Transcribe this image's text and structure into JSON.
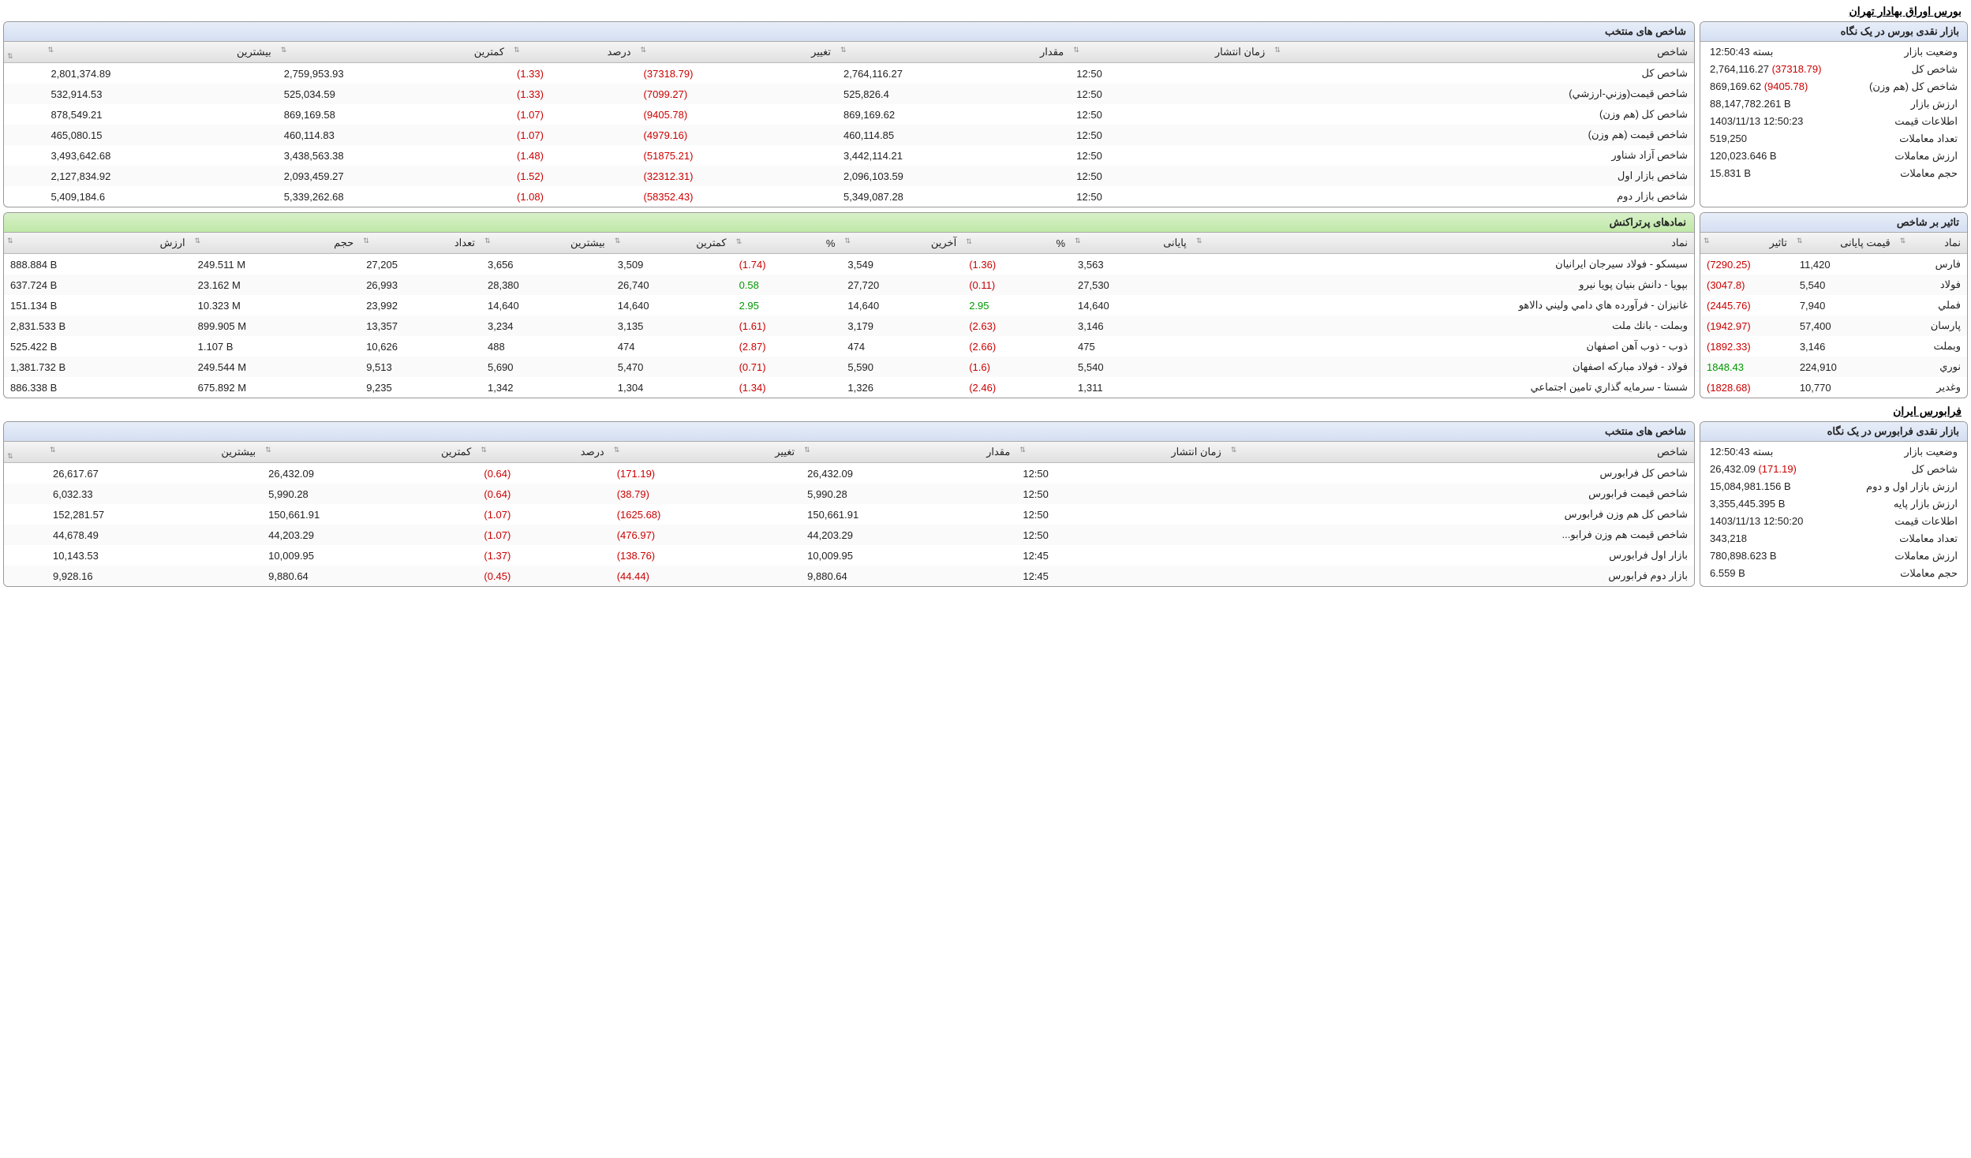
{
  "tse": {
    "title": "بورس اوراق بهادار تهران",
    "glance": {
      "header": "بازار نقدی بورس در یک نگاه",
      "rows": [
        {
          "label": "وضعیت بازار",
          "value": "بسته 12:50:43"
        },
        {
          "label": "شاخص کل",
          "value": "2,764,116.27",
          "delta": "(37318.79)",
          "neg": true
        },
        {
          "label": "شاخص كل (هم وزن)",
          "value": "869,169.62",
          "delta": "(9405.78)",
          "neg": true
        },
        {
          "label": "ارزش بازار",
          "value": "88,147,782.261 B"
        },
        {
          "label": "اطلاعات قیمت",
          "value": "1403/11/13 12:50:23"
        },
        {
          "label": "تعداد معاملات",
          "value": "519,250"
        },
        {
          "label": "ارزش معاملات",
          "value": "120,023.646 B"
        },
        {
          "label": "حجم معاملات",
          "value": "15.831 B"
        }
      ]
    },
    "indices": {
      "header": "شاخص های منتخب",
      "cols": [
        "شاخص",
        "زمان انتشار",
        "مقدار",
        "تغییر",
        "درصد",
        "کمترین",
        "بیشترین",
        ""
      ],
      "rows": [
        [
          "شاخص كل",
          "12:50",
          "2,764,116.27",
          "(37318.79)",
          "(1.33)",
          "2,759,953.93",
          "2,801,374.89"
        ],
        [
          "شاخص قيمت(وزني-ارزشي)",
          "12:50",
          "525,826.4",
          "(7099.27)",
          "(1.33)",
          "525,034.59",
          "532,914.53"
        ],
        [
          "شاخص كل (هم وزن)",
          "12:50",
          "869,169.62",
          "(9405.78)",
          "(1.07)",
          "869,169.58",
          "878,549.21"
        ],
        [
          "شاخص قيمت (هم وزن)",
          "12:50",
          "460,114.85",
          "(4979.16)",
          "(1.07)",
          "460,114.83",
          "465,080.15"
        ],
        [
          "شاخص آزاد شناور",
          "12:50",
          "3,442,114.21",
          "(51875.21)",
          "(1.48)",
          "3,438,563.38",
          "3,493,642.68"
        ],
        [
          "شاخص بازار اول",
          "12:50",
          "2,096,103.59",
          "(32312.31)",
          "(1.52)",
          "2,093,459.27",
          "2,127,834.92"
        ],
        [
          "شاخص بازار دوم",
          "12:50",
          "5,349,087.28",
          "(58352.43)",
          "(1.08)",
          "5,339,262.68",
          "5,409,184.6"
        ]
      ]
    },
    "impact": {
      "header": "تاثیر بر شاخص",
      "cols": [
        "نماد",
        "قیمت پایانی",
        "تاثیر"
      ],
      "rows": [
        [
          "فارس",
          "11,420",
          "(7290.25)",
          "neg"
        ],
        [
          "فولاد",
          "5,540",
          "(3047.8)",
          "neg"
        ],
        [
          "فملي",
          "7,940",
          "(2445.76)",
          "neg"
        ],
        [
          "پارسان",
          "57,400",
          "(1942.97)",
          "neg"
        ],
        [
          "وبملت",
          "3,146",
          "(1892.33)",
          "neg"
        ],
        [
          "نوري",
          "224,910",
          "1848.43",
          "pos"
        ],
        [
          "وغدير",
          "10,770",
          "(1828.68)",
          "neg"
        ]
      ]
    },
    "top": {
      "header": "نمادهای پرتراکنش",
      "cols": [
        "نماد",
        "پایانی",
        "%",
        "آخرین",
        "%",
        "کمترین",
        "بیشترین",
        "تعداد",
        "حجم",
        "ارزش"
      ],
      "rows": [
        [
          "سيسكو - فولاد سيرجان ايرانيان",
          "3,563",
          "(1.36)",
          "3,549",
          "(1.74)",
          "3,509",
          "3,656",
          "27,205",
          "249.511 M",
          "888.884 B"
        ],
        [
          "بپويا - دانش بنيان پويا نيرو",
          "27,530",
          "(0.11)",
          "27,720",
          "0.58",
          "26,740",
          "28,380",
          "26,993",
          "23.162 M",
          "637.724 B"
        ],
        [
          "غانيزان - فرآورده هاي دامي وليني دالاهو",
          "14,640",
          "2.95",
          "14,640",
          "2.95",
          "14,640",
          "14,640",
          "23,992",
          "10.323 M",
          "151.134 B"
        ],
        [
          "وبملت - بانك ملت",
          "3,146",
          "(2.63)",
          "3,179",
          "(1.61)",
          "3,135",
          "3,234",
          "13,357",
          "899.905 M",
          "2,831.533 B"
        ],
        [
          "ذوب - ذوب آهن اصفهان",
          "475",
          "(2.66)",
          "474",
          "(2.87)",
          "474",
          "488",
          "10,626",
          "1.107 B",
          "525.422 B"
        ],
        [
          "فولاد - فولاد مباركه اصفهان",
          "5,540",
          "(1.6)",
          "5,590",
          "(0.71)",
          "5,470",
          "5,690",
          "9,513",
          "249.544 M",
          "1,381.732 B"
        ],
        [
          "شستا - سرمايه گذاري تامين اجتماعي",
          "1,311",
          "(2.46)",
          "1,326",
          "(1.34)",
          "1,304",
          "1,342",
          "9,235",
          "675.892 M",
          "886.338 B"
        ]
      ]
    }
  },
  "ifb": {
    "title": "فرابورس ایران",
    "glance": {
      "header": "بازار نقدی فرابورس در یک نگاه",
      "rows": [
        {
          "label": "وضعیت بازار",
          "value": "بسته 12:50:43"
        },
        {
          "label": "شاخص کل",
          "value": "26,432.09",
          "delta": "(171.19)",
          "neg": true
        },
        {
          "label": "ارزش بازار اول و دوم",
          "value": "15,084,981.156 B"
        },
        {
          "label": "ارزش بازار پایه",
          "value": "3,355,445.395 B"
        },
        {
          "label": "اطلاعات قیمت",
          "value": "1403/11/13 12:50:20"
        },
        {
          "label": "تعداد معاملات",
          "value": "343,218"
        },
        {
          "label": "ارزش معاملات",
          "value": "780,898.623 B"
        },
        {
          "label": "حجم معاملات",
          "value": "6.559 B"
        }
      ]
    },
    "indices": {
      "header": "شاخص های منتخب",
      "cols": [
        "شاخص",
        "زمان انتشار",
        "مقدار",
        "تغییر",
        "درصد",
        "کمترین",
        "بیشترین",
        ""
      ],
      "rows": [
        [
          "شاخص كل فرابورس",
          "12:50",
          "26,432.09",
          "(171.19)",
          "(0.64)",
          "26,432.09",
          "26,617.67"
        ],
        [
          "شاخص قيمت فرابورس",
          "12:50",
          "5,990.28",
          "(38.79)",
          "(0.64)",
          "5,990.28",
          "6,032.33"
        ],
        [
          "شاخص كل هم وزن فرابورس",
          "12:50",
          "150,661.91",
          "(1625.68)",
          "(1.07)",
          "150,661.91",
          "152,281.57"
        ],
        [
          "شاخص قيمت هم وزن فرابو...",
          "12:50",
          "44,203.29",
          "(476.97)",
          "(1.07)",
          "44,203.29",
          "44,678.49"
        ],
        [
          "بازار اول فرابورس",
          "12:45",
          "10,009.95",
          "(138.76)",
          "(1.37)",
          "10,009.95",
          "10,143.53"
        ],
        [
          "بازار دوم فرابورس",
          "12:45",
          "9,880.64",
          "(44.44)",
          "(0.45)",
          "9,880.64",
          "9,928.16"
        ]
      ]
    }
  }
}
